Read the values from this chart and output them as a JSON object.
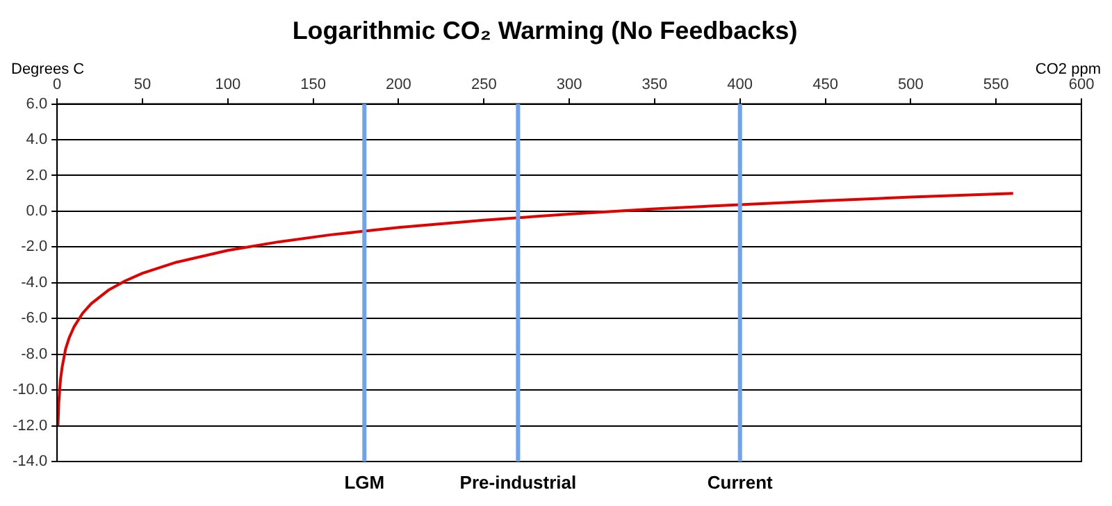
{
  "chart_data": {
    "type": "line",
    "title": "Logarithmic CO₂ Warming (No Feedbacks)",
    "xlabel": "CO2 ppm",
    "ylabel": "Degrees C",
    "x": [
      0.5,
      1,
      2,
      3,
      5,
      7,
      10,
      15,
      20,
      30,
      40,
      50,
      70,
      100,
      130,
      160,
      200,
      250,
      300,
      350,
      400,
      450,
      500,
      560
    ],
    "series": [
      {
        "color": "#e00000",
        "values": [
          -12.0,
          -10.7,
          -9.4,
          -8.7,
          -7.7,
          -7.1,
          -6.45,
          -5.7,
          -5.17,
          -4.42,
          -3.89,
          -3.47,
          -2.85,
          -2.19,
          -1.71,
          -1.32,
          -0.91,
          -0.5,
          -0.16,
          0.13,
          0.37,
          0.59,
          0.79,
          1.0
        ]
      }
    ],
    "xlim": [
      0,
      600
    ],
    "xticks": [
      0,
      50,
      100,
      150,
      200,
      250,
      300,
      350,
      400,
      450,
      500,
      550,
      600
    ],
    "ylim": [
      -14,
      6
    ],
    "yticks": [
      {
        "value": -14,
        "label": "-14.0"
      },
      {
        "value": -12,
        "label": "-12.0"
      },
      {
        "value": -10,
        "label": "-10.0"
      },
      {
        "value": -8,
        "label": "-8.0"
      },
      {
        "value": -6,
        "label": "-6.0"
      },
      {
        "value": -4,
        "label": "-4.0"
      },
      {
        "value": -2,
        "label": "-2.0"
      },
      {
        "value": 0,
        "label": "0.0"
      },
      {
        "value": 2,
        "label": "2.0"
      },
      {
        "value": 4,
        "label": "4.0"
      },
      {
        "value": 6,
        "label": "6.0"
      }
    ],
    "ref_lines": [
      {
        "axis": "x",
        "value": 180,
        "label": "LGM",
        "color": "#6fa3ef"
      },
      {
        "axis": "x",
        "value": 270,
        "label": "Pre-industrial",
        "color": "#6fa3ef"
      },
      {
        "axis": "x",
        "value": 400,
        "label": "Current",
        "color": "#6fa3ef"
      }
    ],
    "grid": "y",
    "legend": false,
    "marker": "none",
    "line_style": "solid"
  }
}
